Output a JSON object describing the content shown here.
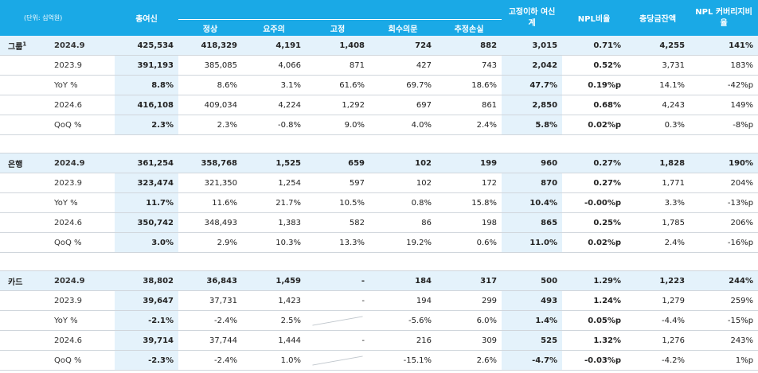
{
  "header": {
    "unit": "(단위: 십억원)",
    "total": "총여신",
    "normal": "정상",
    "caution": "요주의",
    "substandard": "고정",
    "doubtful": "회수의문",
    "loss": "추정손실",
    "sub_below": "고정이하 여신계",
    "npl_ratio": "NPL비율",
    "allowance": "충당금잔액",
    "npl_coverage": "NPL 커버리지비율"
  },
  "groups": [
    {
      "name": "그룹",
      "sup": "1",
      "rows": [
        {
          "period": "2024.9",
          "cells": [
            "425,534",
            "418,329",
            "4,191",
            "1,408",
            "724",
            "882",
            "3,015",
            "0.71%",
            "4,255",
            "141%"
          ]
        },
        {
          "period": "2023.9",
          "cells": [
            "391,193",
            "385,085",
            "4,066",
            "871",
            "427",
            "743",
            "2,042",
            "0.52%",
            "3,731",
            "183%"
          ]
        },
        {
          "period": "YoY %",
          "cells": [
            "8.8%",
            "8.6%",
            "3.1%",
            "61.6%",
            "69.7%",
            "18.6%",
            "47.7%",
            "0.19%p",
            "14.1%",
            "-42%p"
          ]
        },
        {
          "period": "2024.6",
          "cells": [
            "416,108",
            "409,034",
            "4,224",
            "1,292",
            "697",
            "861",
            "2,850",
            "0.68%",
            "4,243",
            "149%"
          ]
        },
        {
          "period": "QoQ %",
          "cells": [
            "2.3%",
            "2.3%",
            "-0.8%",
            "9.0%",
            "4.0%",
            "2.4%",
            "5.8%",
            "0.02%p",
            "0.3%",
            "-8%p"
          ]
        }
      ]
    },
    {
      "name": "은행",
      "sup": "",
      "rows": [
        {
          "period": "2024.9",
          "cells": [
            "361,254",
            "358,768",
            "1,525",
            "659",
            "102",
            "199",
            "960",
            "0.27%",
            "1,828",
            "190%"
          ]
        },
        {
          "period": "2023.9",
          "cells": [
            "323,474",
            "321,350",
            "1,254",
            "597",
            "102",
            "172",
            "870",
            "0.27%",
            "1,771",
            "204%"
          ]
        },
        {
          "period": "YoY %",
          "cells": [
            "11.7%",
            "11.6%",
            "21.7%",
            "10.5%",
            "0.8%",
            "15.8%",
            "10.4%",
            "-0.00%p",
            "3.3%",
            "-13%p"
          ]
        },
        {
          "period": "2024.6",
          "cells": [
            "350,742",
            "348,493",
            "1,383",
            "582",
            "86",
            "198",
            "865",
            "0.25%",
            "1,785",
            "206%"
          ]
        },
        {
          "period": "QoQ %",
          "cells": [
            "3.0%",
            "2.9%",
            "10.3%",
            "13.3%",
            "19.2%",
            "0.6%",
            "11.0%",
            "0.02%p",
            "2.4%",
            "-16%p"
          ]
        }
      ]
    },
    {
      "name": "카드",
      "sup": "",
      "rows": [
        {
          "period": "2024.9",
          "cells": [
            "38,802",
            "36,843",
            "1,459",
            "-",
            "184",
            "317",
            "500",
            "1.29%",
            "1,223",
            "244%"
          ]
        },
        {
          "period": "2023.9",
          "cells": [
            "39,647",
            "37,731",
            "1,423",
            "-",
            "194",
            "299",
            "493",
            "1.24%",
            "1,279",
            "259%"
          ]
        },
        {
          "period": "YoY %",
          "cells": [
            "-2.1%",
            "-2.4%",
            "2.5%",
            "",
            "-5.6%",
            "6.0%",
            "1.4%",
            "0.05%p",
            "-4.4%",
            "-15%p"
          ]
        },
        {
          "period": "2024.6",
          "cells": [
            "39,714",
            "37,744",
            "1,444",
            "-",
            "216",
            "309",
            "525",
            "1.32%",
            "1,276",
            "243%"
          ]
        },
        {
          "period": "QoQ %",
          "cells": [
            "-2.3%",
            "-2.4%",
            "1.0%",
            "",
            "-15.1%",
            "2.6%",
            "-4.7%",
            "-0.03%p",
            "-4.2%",
            "1%p"
          ]
        }
      ]
    }
  ]
}
